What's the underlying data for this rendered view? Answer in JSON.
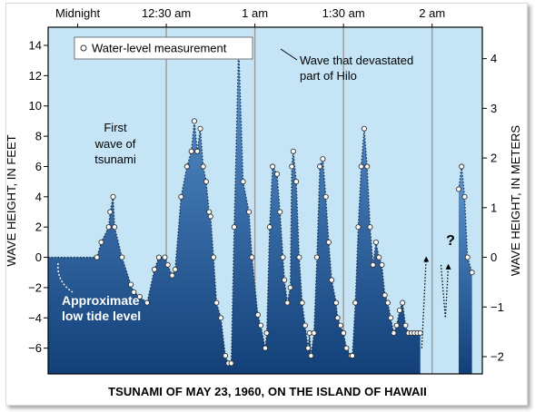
{
  "chart_data": {
    "type": "area",
    "caption": "TSUNAMI OF MAY 23, 1960, ON THE ISLAND OF HAWAII",
    "ylabel_left": "WAVE HEIGHT, IN FEET",
    "ylabel_right": "WAVE HEIGHT, IN METERS",
    "top_axis_labels": [
      "Midnight",
      "12:30 am",
      "1 am",
      "1:30 am",
      "2 am"
    ],
    "top_axis_minutes": [
      0,
      30,
      60,
      90,
      120
    ],
    "x_unit": "minutes after midnight",
    "xlim": [
      -10,
      137
    ],
    "ylim": [
      -7.7,
      15.2
    ],
    "yticks_feet": [
      14,
      12,
      10,
      8,
      6,
      4,
      2,
      0,
      -2,
      -4,
      -6
    ],
    "yticks_meters": [
      4,
      3,
      2,
      1,
      0,
      -1,
      -2
    ],
    "grid_vertical": true,
    "legend_label": "Water-level measurement",
    "legend_position": "top-left",
    "colors": {
      "background": "#c5e5f7",
      "fill_top": "#5f9ad6",
      "fill_bottom": "#123f78",
      "grid": "#9a9a9a"
    },
    "annotations": {
      "first_wave_line1": "First",
      "first_wave_line2": "wave of",
      "first_wave_line3": "tsunami",
      "hilo_wave_line1": "Wave that devastated",
      "hilo_wave_line2": "part of Hilo",
      "low_tide_line1": "Approximate",
      "low_tide_line2": "low tide level",
      "question": "?"
    },
    "series": [
      {
        "segment": 1,
        "x": [
          -10,
          6.5,
          8,
          10.5,
          11,
          12,
          12.5,
          15,
          18,
          19,
          21,
          23.5,
          26,
          27.5,
          29.5,
          30.5,
          32,
          33,
          35,
          37,
          38.5,
          39.5,
          40.5,
          41.5,
          42.5,
          43.5,
          44.5,
          45,
          46,
          47,
          48.5,
          50,
          51,
          52,
          53,
          54.5,
          56,
          58,
          59,
          61,
          62,
          63.5,
          64,
          65,
          66,
          67.5,
          68.5,
          69.5,
          70,
          71,
          72,
          72.5,
          73,
          74,
          75,
          76,
          77,
          78,
          78.5,
          79,
          80,
          81,
          82,
          83,
          84,
          85,
          86,
          87.5,
          88,
          89,
          90,
          91,
          92.5,
          93,
          94,
          95,
          96,
          97,
          98,
          99,
          100,
          101,
          102,
          103,
          104,
          105,
          106,
          107,
          108,
          109,
          110,
          111,
          112,
          113,
          114,
          115,
          116
        ],
        "y": [
          0,
          0,
          1,
          2,
          3,
          4,
          2,
          0,
          -1.8,
          -2.3,
          -2.6,
          -3,
          -0.8,
          0,
          0,
          -0.5,
          -1.2,
          -0.8,
          4,
          6,
          7,
          9,
          7,
          8.5,
          6,
          5,
          3,
          2.7,
          0,
          -3,
          -4,
          -6.5,
          -7,
          -7,
          2,
          14,
          5,
          3,
          0,
          -3.8,
          -4.5,
          -6,
          -5,
          2,
          6,
          5.5,
          3,
          0,
          -1.5,
          -3,
          -2,
          6,
          7,
          5,
          0,
          -3,
          -4.5,
          -6,
          -5,
          -6.5,
          -5,
          0,
          6,
          6.5,
          4,
          1,
          -1.5,
          -3,
          -4,
          -4.5,
          -5,
          -6,
          -6.5,
          -6.5,
          -3,
          2,
          6,
          8.5,
          6,
          2,
          -0.5,
          1,
          0,
          -0.5,
          -2.5,
          -3,
          -4,
          -5,
          -4.5,
          -3.5,
          -3,
          -4.5,
          -5,
          -5,
          -5,
          -5,
          -5
        ]
      },
      {
        "segment": 2,
        "x": [
          129,
          130,
          131,
          132,
          133.5
        ],
        "y": [
          4.5,
          6,
          4,
          0,
          -1
        ]
      }
    ],
    "gap_markers": [
      {
        "x": [
          116.5,
          118
        ],
        "y": [
          -6,
          0
        ]
      },
      {
        "x": [
          123,
          124.5,
          125.5
        ],
        "y": [
          -0.5,
          -4,
          -0.5
        ]
      }
    ]
  }
}
